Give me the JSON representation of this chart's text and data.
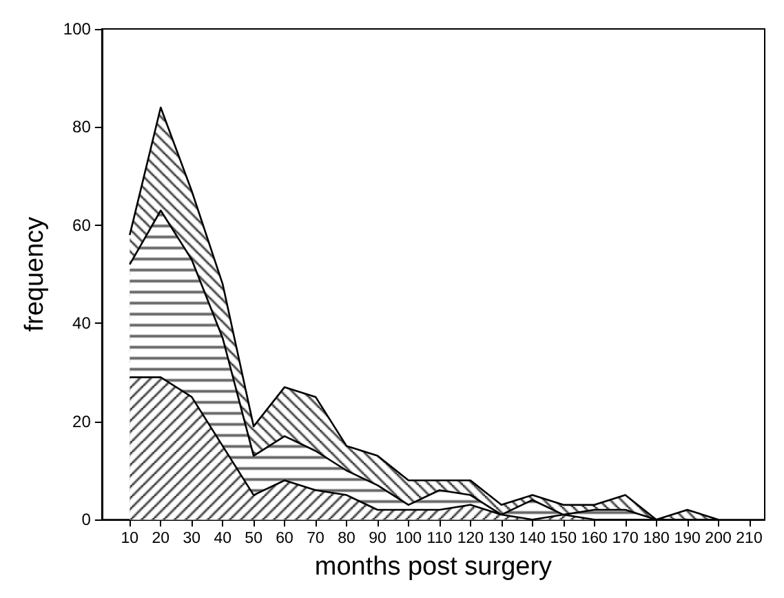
{
  "chart_data": {
    "type": "area",
    "stacked": true,
    "xlabel": "months post surgery",
    "ylabel": "frequency",
    "x": [
      10,
      20,
      30,
      40,
      50,
      60,
      70,
      80,
      90,
      100,
      110,
      120,
      130,
      140,
      150,
      160,
      170,
      180,
      190,
      200
    ],
    "xlim": [
      1,
      215
    ],
    "xticks": [
      10,
      20,
      30,
      40,
      50,
      60,
      70,
      80,
      90,
      100,
      110,
      120,
      130,
      140,
      150,
      160,
      170,
      180,
      190,
      200,
      210
    ],
    "ylim": [
      0,
      100
    ],
    "yticks": [
      0,
      20,
      40,
      60,
      80,
      100
    ],
    "grid": false,
    "series": [
      {
        "color": "#000000",
        "values": [
          29,
          29,
          25,
          15,
          5,
          8,
          6,
          5,
          2,
          2,
          2,
          3,
          1,
          0,
          1,
          0,
          0,
          0,
          0,
          0
        ]
      },
      {
        "color": "#000000",
        "values": [
          23,
          34,
          28,
          22,
          8,
          9,
          8,
          5,
          5,
          1,
          4,
          2,
          0,
          4,
          0,
          2,
          2,
          0,
          0,
          0
        ]
      },
      {
        "color": "#000000",
        "values": [
          6,
          21,
          14,
          11,
          6,
          10,
          11,
          5,
          6,
          5,
          2,
          3,
          2,
          1,
          2,
          1,
          3,
          0,
          2,
          0
        ]
      }
    ]
  }
}
